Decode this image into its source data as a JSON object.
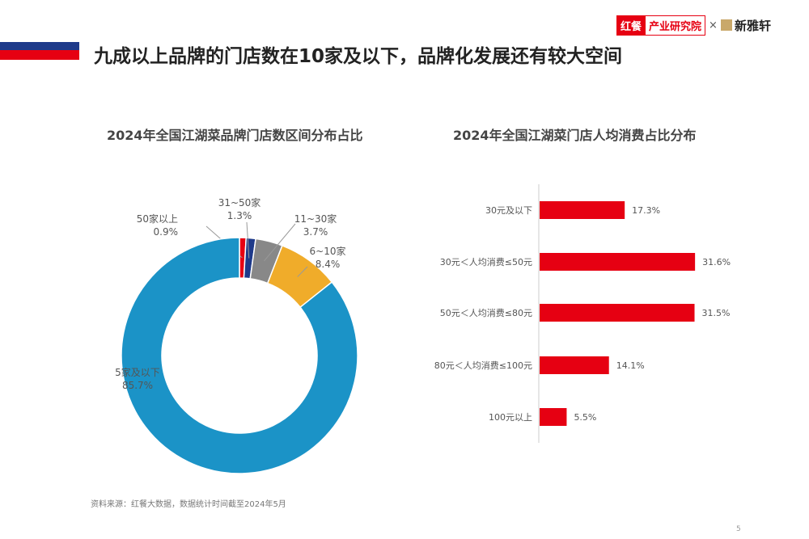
{
  "header": {
    "title": "九成以上品牌的门店数在10家及以下，品牌化发展还有较大空间",
    "logo_left_mark": "红餐",
    "logo_left_text": "产业研究院",
    "logo_sep": "×",
    "logo_right_text": "新雅轩"
  },
  "chart_data": [
    {
      "type": "pie",
      "donut": true,
      "title": "2024年全国江湖菜品牌门店数区间分布占比",
      "slices": [
        {
          "label": "50家以上",
          "value": 0.9,
          "display": "0.9%",
          "color": "#e60012"
        },
        {
          "label": "31~50家",
          "value": 1.3,
          "display": "1.3%",
          "color": "#1e3a8a"
        },
        {
          "label": "11~30家",
          "value": 3.7,
          "display": "3.7%",
          "color": "#888888"
        },
        {
          "label": "6~10家",
          "value": 8.4,
          "display": "8.4%",
          "color": "#f0ac2a"
        },
        {
          "label": "5家及以下",
          "value": 85.7,
          "display": "85.7%",
          "color": "#1b93c7"
        }
      ]
    },
    {
      "type": "bar",
      "orientation": "horizontal",
      "title": "2024年全国江湖菜门店人均消费占比分布",
      "categories": [
        "30元及以下",
        "30元＜人均消费≤50元",
        "50元＜人均消费≤80元",
        "80元＜人均消费≤100元",
        "100元以上"
      ],
      "values": [
        17.3,
        31.6,
        31.5,
        14.1,
        5.5
      ],
      "labels": [
        "17.3%",
        "31.6%",
        "31.5%",
        "14.1%",
        "5.5%"
      ],
      "color": "#e60012"
    }
  ],
  "footer": {
    "source": "资料来源：红餐大数据，数据统计时间截至2024年5月",
    "page": "5"
  }
}
